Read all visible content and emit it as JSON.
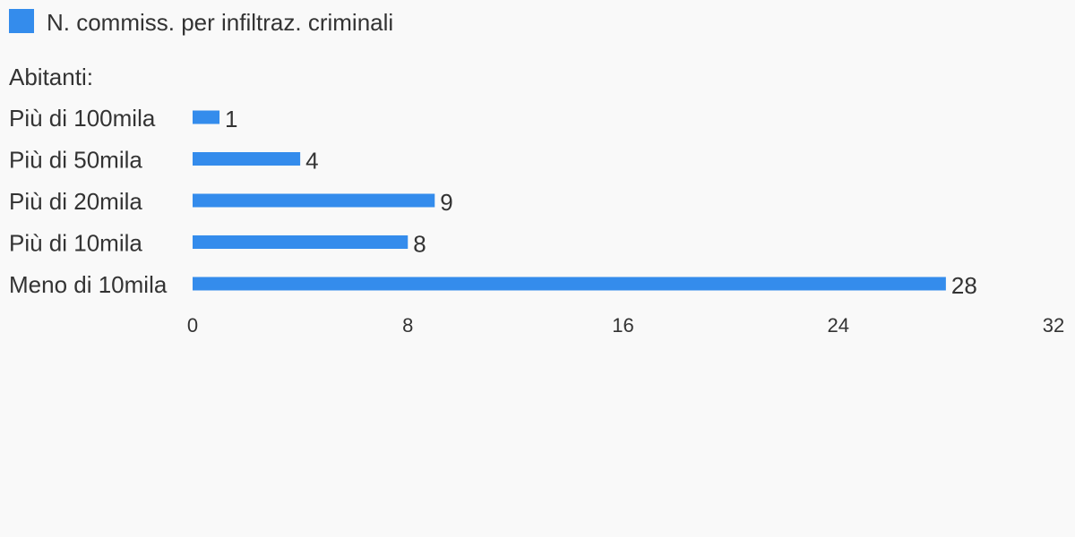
{
  "legend": {
    "label": "N. commiss. per infiltraz. criminali",
    "color": "#348cec"
  },
  "group_label": "Abitanti:",
  "chart_data": {
    "type": "bar",
    "orientation": "horizontal",
    "categories": [
      "Più di 100mila",
      "Più di 50mila",
      "Più di 20mila",
      "Più di 10mila",
      "Meno di 10mila"
    ],
    "series": [
      {
        "name": "N. commiss. per infiltraz. criminali",
        "values": [
          1,
          4,
          9,
          8,
          28
        ]
      }
    ],
    "xlim": [
      0,
      32
    ],
    "x_ticks": [
      0,
      8,
      16,
      24,
      32
    ],
    "bar_color": "#348cec",
    "grid": false,
    "legend_position": "top-left",
    "data_labels": true
  }
}
